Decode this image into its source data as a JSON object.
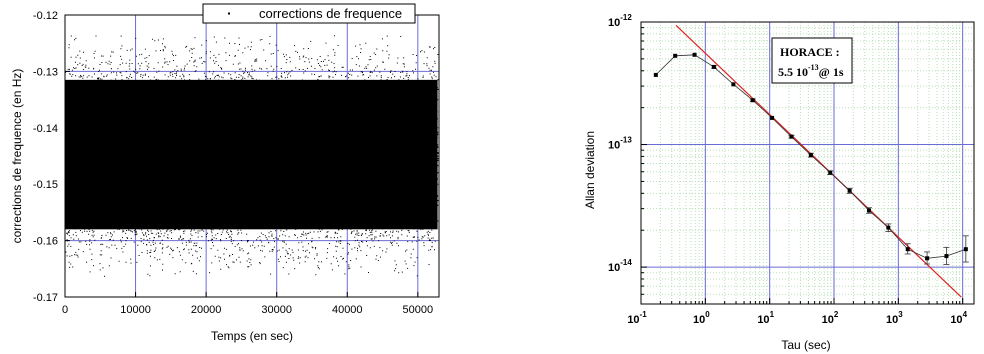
{
  "chart_data": [
    {
      "type": "scatter",
      "xlabel": "Temps (en sec)",
      "ylabel": "corrections de frequence (en Hz)",
      "xlim": [
        0,
        53000
      ],
      "ylim": [
        -0.17,
        -0.12
      ],
      "x_ticks": [
        "0",
        "10000",
        "20000",
        "30000",
        "40000",
        "50000"
      ],
      "y_ticks": [
        "-0.12",
        "-0.13",
        "-0.14",
        "-0.15",
        "-0.16",
        "-0.17"
      ],
      "x_data_range": [
        0,
        52800
      ],
      "band": {
        "center": -0.1448,
        "dense_low": -0.162,
        "dense_high": -0.127,
        "sparse_low": -0.1665,
        "sparse_high": -0.1235
      },
      "legend": {
        "entries": [
          "corrections de frequence"
        ],
        "position": "top-right"
      },
      "grid": true,
      "colors": {
        "points": "#000000",
        "grid": "#6b6bd6"
      }
    },
    {
      "type": "line",
      "xlabel": "Tau (sec)",
      "ylabel": "Allan deviation",
      "xscale": "log",
      "yscale": "log",
      "xlim": [
        0.1,
        15000
      ],
      "ylim": [
        5e-15,
        1e-12
      ],
      "x_ticks": [
        {
          "base": "10",
          "exp": "-1"
        },
        {
          "base": "10",
          "exp": "0"
        },
        {
          "base": "10",
          "exp": "1"
        },
        {
          "base": "10",
          "exp": "2"
        },
        {
          "base": "10",
          "exp": "3"
        },
        {
          "base": "10",
          "exp": "4"
        }
      ],
      "y_ticks": [
        {
          "base": "10",
          "exp": "-12"
        },
        {
          "base": "10",
          "exp": "-13"
        },
        {
          "base": "10",
          "exp": "-14"
        }
      ],
      "series": [
        {
          "x": [
            0.17,
            0.34,
            0.68,
            1.36,
            2.73,
            5.46,
            10.9,
            21.8,
            43.7,
            87.4,
            175,
            350,
            699,
            1400,
            2800,
            5590,
            11200
          ],
          "y": [
            3.7e-13,
            5.3e-13,
            5.4e-13,
            4.3e-13,
            3.1e-13,
            2.3e-13,
            1.65e-13,
            1.16e-13,
            8.2e-14,
            5.9e-14,
            4.2e-14,
            2.9e-14,
            2.1e-14,
            1.4e-14,
            1.18e-14,
            1.23e-14,
            1.4e-14
          ],
          "err_low": [
            3.7e-13,
            5.3e-13,
            5.4e-13,
            4.2e-13,
            3.05e-13,
            2.25e-13,
            1.62e-13,
            1.13e-13,
            7.9e-14,
            5.7e-14,
            4e-14,
            2.75e-14,
            1.95e-14,
            1.28e-14,
            1.06e-14,
            1.05e-14,
            1.1e-14
          ],
          "err_high": [
            3.7e-13,
            5.3e-13,
            5.4e-13,
            4.4e-13,
            3.15e-13,
            2.35e-13,
            1.68e-13,
            1.19e-13,
            8.5e-14,
            6.1e-14,
            4.4e-14,
            3.05e-14,
            2.25e-14,
            1.55e-14,
            1.33e-14,
            1.45e-14,
            1.8e-14
          ]
        }
      ],
      "fit_line": {
        "x": [
          0.35,
          9500
        ],
        "y": [
          9.4e-13,
          5.7e-15
        ],
        "color": "#e02020"
      },
      "annotation": {
        "title": "HORACE :",
        "value_prefix": "5.5 10",
        "exponent": "-13",
        "suffix": "@ 1s"
      },
      "grid": true,
      "colors": {
        "points": "#000000",
        "major_grid": "#6b6bd6",
        "minor_grid": "#b8e0b8"
      }
    }
  ]
}
